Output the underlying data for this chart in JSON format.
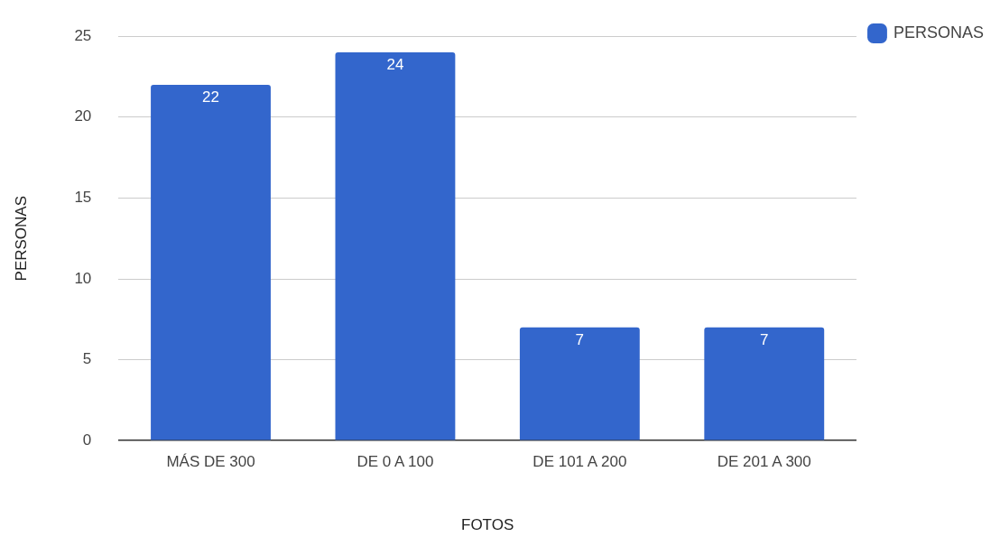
{
  "chart_data": {
    "type": "bar",
    "xlabel": "FOTOS",
    "ylabel": "PERSONAS",
    "categories": [
      "MÁS DE 300",
      "DE 0 A 100",
      "DE 101 A 200",
      "DE 201 A 300"
    ],
    "series": [
      {
        "name": "PERSONAS",
        "color": "#3366cc",
        "values": [
          22,
          24,
          7,
          7
        ]
      }
    ],
    "ylim": [
      0,
      25
    ],
    "yticks": [
      0,
      5,
      10,
      15,
      20,
      25
    ],
    "grid": "y",
    "legend": "top right",
    "data_labels": true
  }
}
